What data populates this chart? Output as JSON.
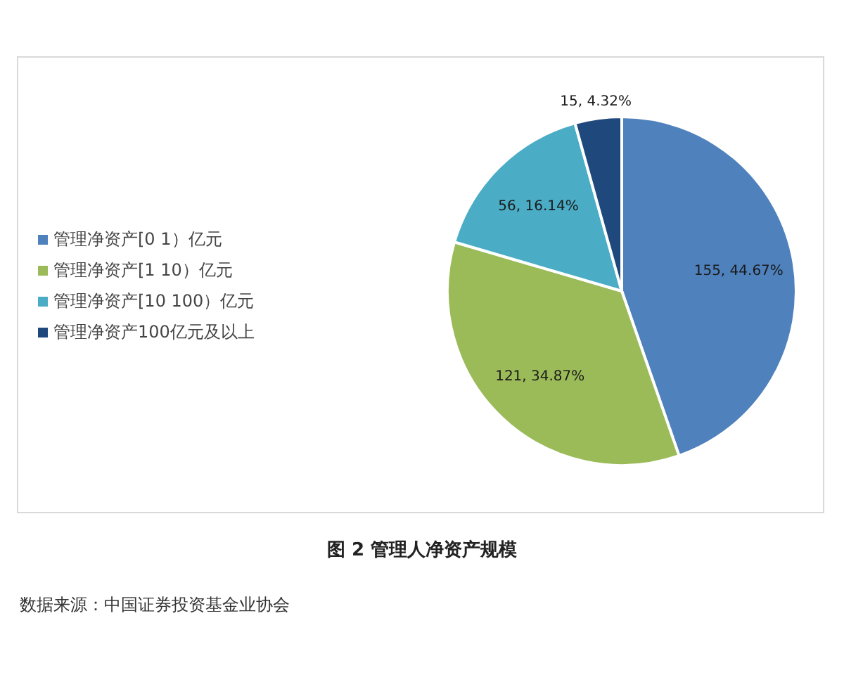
{
  "chart_data": {
    "type": "pie",
    "title": "图 2 管理人净资产规模",
    "annotations": [
      "数据来源：中国证券投资基金业协会"
    ],
    "categories": [
      "管理净资产[0 1）亿元",
      "管理净资产[1 10）亿元",
      "管理净资产[10 100）亿元",
      "管理净资产100亿元及以上"
    ],
    "values": [
      155,
      121,
      56,
      15
    ],
    "value_labels": [
      "155, 44.67%",
      "121, 34.87%",
      "56, 16.14%",
      "15, 4.32%"
    ],
    "colors": [
      "#4f81bd",
      "#9bbb59",
      "#4bacc6",
      "#1f497d"
    ],
    "legend": "left"
  }
}
